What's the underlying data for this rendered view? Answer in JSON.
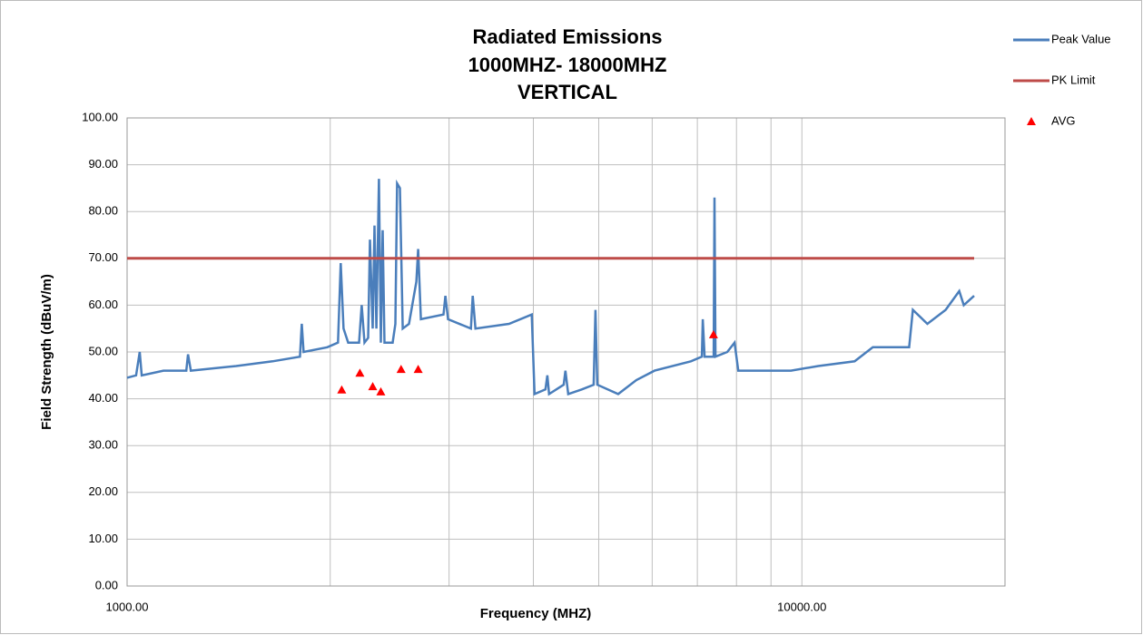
{
  "chart_data": {
    "type": "line",
    "title": [
      "Radiated Emissions",
      "1000MHZ- 18000MHZ",
      "VERTICAL"
    ],
    "x_label": "Frequency (MHZ)",
    "y_label": "Field Strength (dBuV/m)",
    "xscale": "log",
    "xlim": [
      1000,
      20000
    ],
    "xticks": [
      {
        "value": 1000,
        "label": "1000.00"
      },
      {
        "value": 10000,
        "label": "10000.00"
      }
    ],
    "xgrid": [
      2000,
      3000,
      4000,
      5000,
      6000,
      7000,
      8000,
      9000,
      20000
    ],
    "ylim": [
      0,
      100
    ],
    "yticks": [
      {
        "value": 0,
        "label": "0.00"
      },
      {
        "value": 10,
        "label": "10.00"
      },
      {
        "value": 20,
        "label": "20.00"
      },
      {
        "value": 30,
        "label": "30.00"
      },
      {
        "value": 40,
        "label": "40.00"
      },
      {
        "value": 50,
        "label": "50.00"
      },
      {
        "value": 60,
        "label": "60.00"
      },
      {
        "value": 70,
        "label": "70.00"
      },
      {
        "value": 80,
        "label": "80.00"
      },
      {
        "value": 90,
        "label": "90.00"
      },
      {
        "value": 100,
        "label": "100.00"
      }
    ],
    "grid": true,
    "legend": "right",
    "series": [
      {
        "name": "Peak Value",
        "color": "#4a7ebb",
        "kind": "line",
        "x": [
          1000,
          1031,
          1044,
          1051,
          1132,
          1224,
          1231,
          1243,
          1451,
          1643,
          1804,
          1815,
          1826,
          1980,
          2054,
          2073,
          2093,
          2126,
          2207,
          2227,
          2248,
          2276,
          2290,
          2312,
          2326,
          2341,
          2362,
          2377,
          2392,
          2407,
          2475,
          2498,
          2513,
          2537,
          2561,
          2617,
          2683,
          2700,
          2725,
          2944,
          2963,
          2990,
          3232,
          3252,
          3283,
          3681,
          3978,
          4016,
          4169,
          4195,
          4221,
          4436,
          4463,
          4505,
          4719,
          4914,
          4944,
          4975,
          5342,
          5684,
          6049,
          6848,
          7109,
          7130,
          7174,
          7400,
          7421,
          7447,
          7753,
          7948,
          8048,
          8511,
          9634,
          10575,
          11975,
          12739,
          14421,
          14602,
          15346,
          16331,
          17111,
          17378,
          18000
        ],
        "values": [
          44.5,
          45,
          50,
          45,
          46,
          46,
          49.5,
          46,
          47,
          48,
          49,
          56,
          50,
          51,
          52,
          69,
          55,
          52,
          52,
          60,
          52,
          53,
          74,
          55,
          77,
          55,
          87,
          52,
          76,
          52,
          52,
          56,
          86,
          85,
          55,
          56,
          65,
          72,
          57,
          58,
          62,
          57,
          55,
          62,
          55,
          56,
          58,
          41,
          42,
          45,
          41,
          43,
          46,
          41,
          42,
          43,
          59,
          43,
          41,
          44,
          46,
          48,
          49,
          57,
          49,
          49,
          83,
          49,
          50,
          52,
          46,
          46,
          46,
          47,
          48,
          51,
          51,
          59,
          56,
          59,
          63,
          60,
          62
        ]
      },
      {
        "name": "PK Limit",
        "color": "#be4b48",
        "kind": "line",
        "x": [
          1000,
          18000
        ],
        "values": [
          70,
          70
        ]
      },
      {
        "name": "AVG",
        "color": "#ff0000",
        "kind": "marker",
        "x": [
          2080,
          2213,
          2312,
          2377,
          2547,
          2700,
          7396
        ],
        "values": [
          41.9,
          45.5,
          42.6,
          41.5,
          46.3,
          46.3,
          53.7
        ]
      }
    ]
  }
}
